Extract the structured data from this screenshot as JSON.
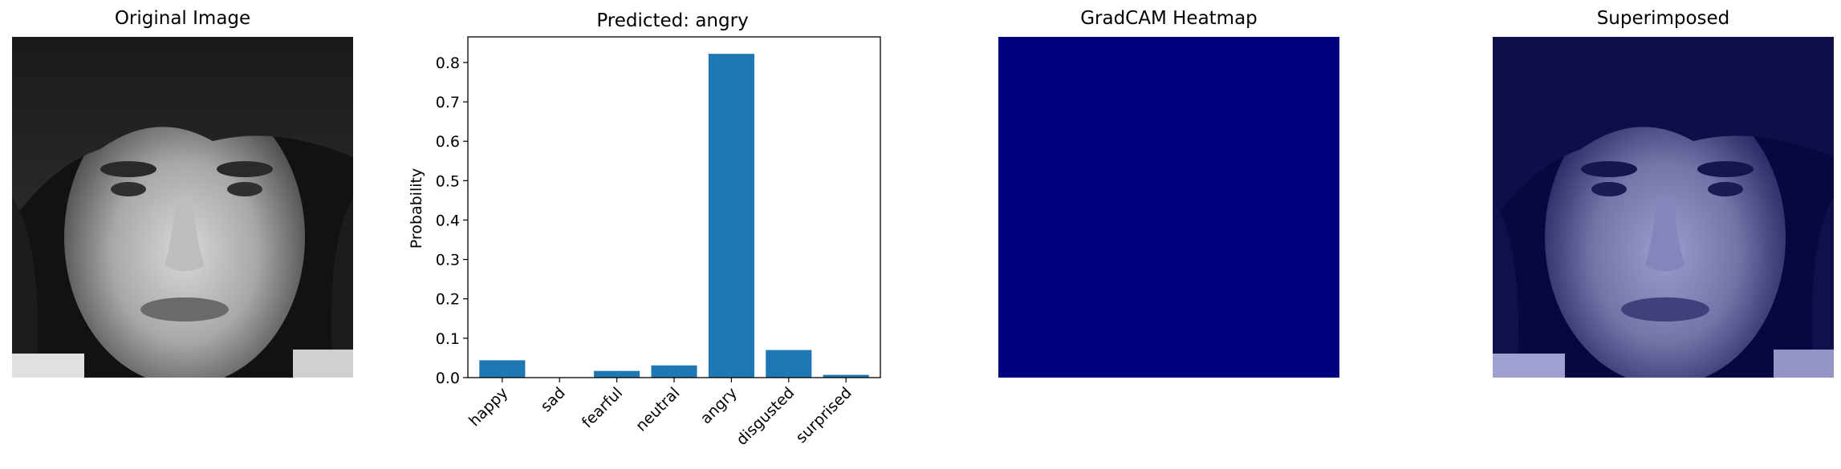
{
  "panels": {
    "original": {
      "title": "Original Image"
    },
    "heatmap": {
      "title": "GradCAM Heatmap",
      "fill": "#00007f"
    },
    "superimposed": {
      "title": "Superimposed",
      "tint": "#00007f"
    }
  },
  "chart_data": {
    "type": "bar",
    "title": "Predicted: angry",
    "xlabel": "",
    "ylabel": "Probability",
    "categories": [
      "happy",
      "sad",
      "fearful",
      "neutral",
      "angry",
      "disgusted",
      "surprised"
    ],
    "values": [
      0.044,
      0.001,
      0.017,
      0.031,
      0.822,
      0.07,
      0.007
    ],
    "ylim": [
      0,
      0.865
    ],
    "yticks": [
      "0.0",
      "0.1",
      "0.2",
      "0.3",
      "0.4",
      "0.5",
      "0.6",
      "0.7",
      "0.8"
    ],
    "bar_color": "#1f77b4",
    "grid": false
  }
}
